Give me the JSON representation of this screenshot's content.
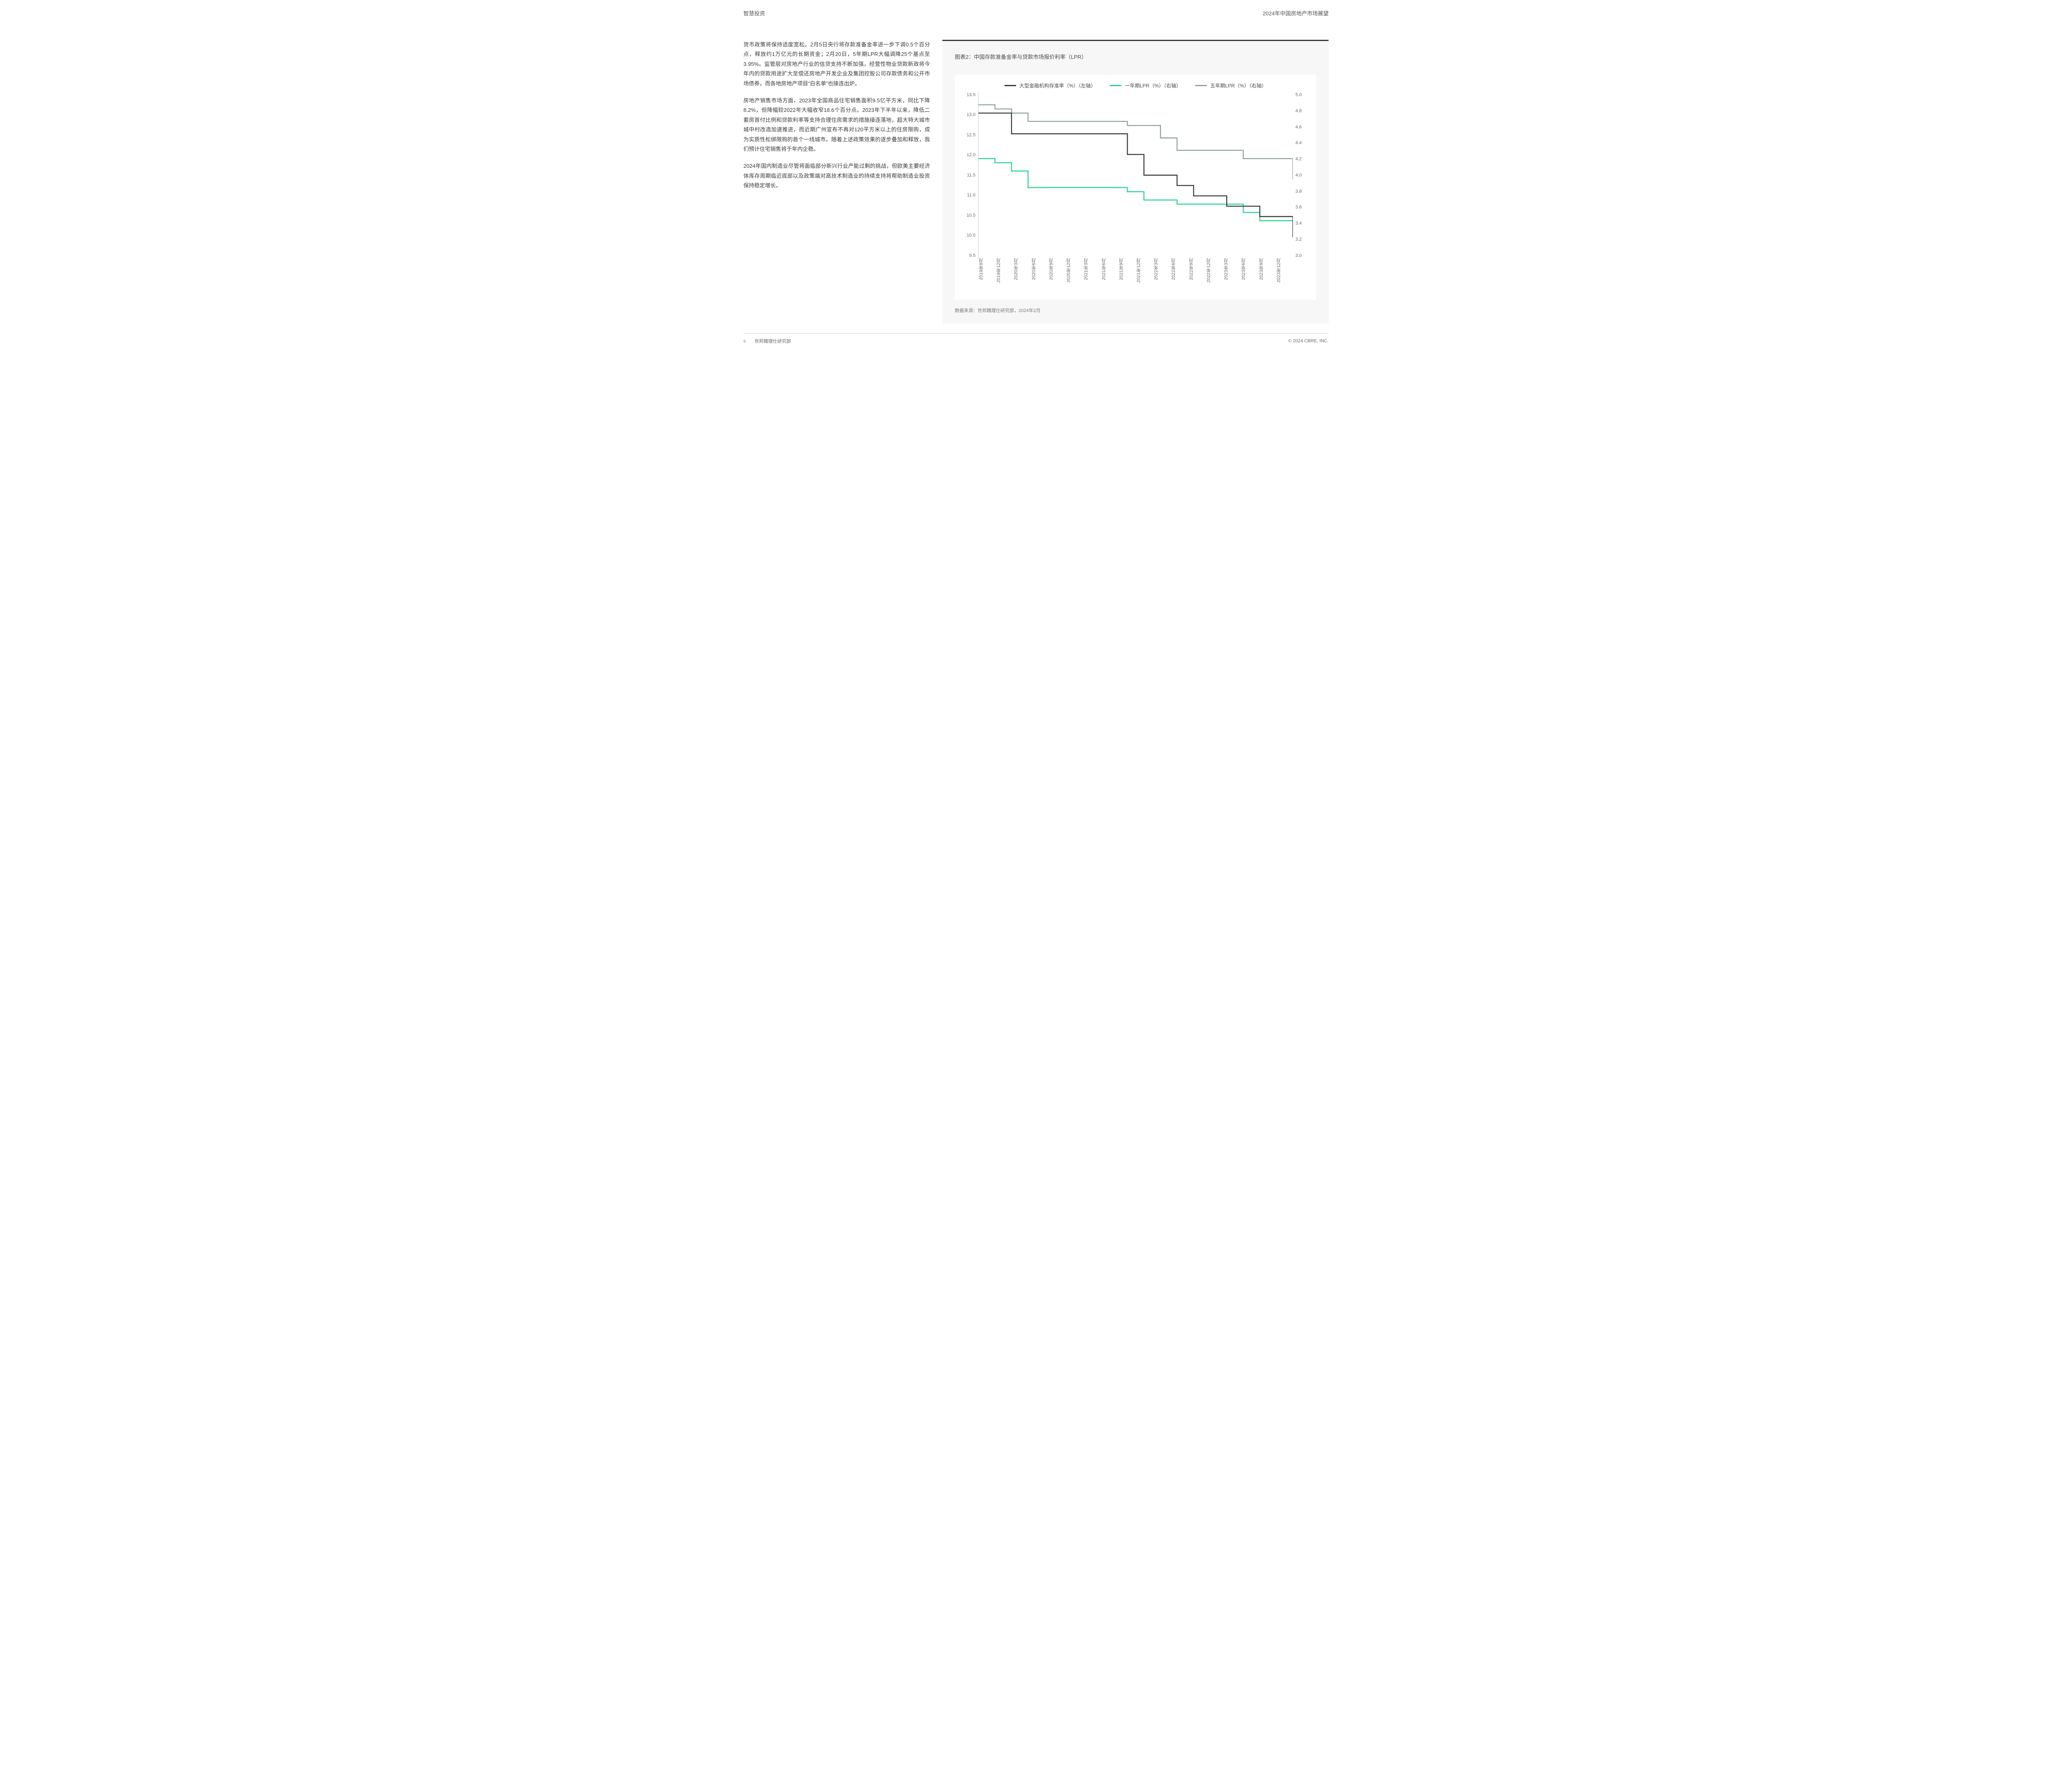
{
  "header": {
    "left": "智慧投资",
    "right": "2024年中国房地产市场展望"
  },
  "paragraphs": [
    "货币政策将保持适度宽松。2月5日央行将存款准备金率进一步下调0.5个百分点，释放约1万亿元的长期资金；2月20日，5年期LPR大幅调降25个基点至3.95%。监管层对房地产行业的信贷支持不断加强，经营性物业贷款新政将今年内的贷款用途扩大至偿还房地产开发企业及集团控股公司存款债务和公开市场债券，而各地房地产项目“白名单”也接连出炉。",
    "房地产销售市场方面，2023年全国商品住宅销售面积9.5亿平方米，同比下降8.2%，但降幅较2022年大幅收窄18.6个百分点。2023年下半年以来，降低二套房首付比例和贷款利率等支持合理住房需求的措施接连落地，超大特大城市城中村改造加速推进，而近期广州宣布不再对120平方米以上的住房限购，成为实质性松绑限购的首个一线城市。随着上述政策效果的逐步叠加和释放，我们预计住宅销售将于年内企稳。",
    "2024年国内制造业尽管将面临部分新兴行业产能过剩的挑战，但欧美主要经济体库存周期临近底部以及政策端对高技术制造业的持续支持将帮助制造业投资保持稳定增长。"
  ],
  "chart": {
    "title": "图表2：中国存款准备金率与贷款市场报价利率（LPR）",
    "type": "line-step-dual-axis",
    "background_color": "#ffffff",
    "panel_color": "#f7f7f7",
    "legend": [
      {
        "label": "大型金融机构存准率（%）（左轴）",
        "color": "#3a3a3a"
      },
      {
        "label": "一年期LPR（%）（右轴）",
        "color": "#1ed68c"
      },
      {
        "label": "五年期LPR（%）（右轴）",
        "color": "#8fa39a"
      }
    ],
    "left_axis": {
      "min": 9.5,
      "max": 13.5,
      "step": 0.5,
      "ticks": [
        13.5,
        13.0,
        12.5,
        12.0,
        11.5,
        11.0,
        10.5,
        10.0,
        9.5
      ]
    },
    "right_axis": {
      "min": 3.0,
      "max": 5.0,
      "step": 0.2,
      "ticks": [
        5.0,
        4.8,
        4.6,
        4.4,
        4.2,
        4.0,
        3.8,
        3.6,
        3.4,
        3.2,
        3.0
      ]
    },
    "x_labels": [
      "2019年9月",
      "2019年12月",
      "2020年3月",
      "2020年6月",
      "2020年9月",
      "2020年12月",
      "2021年3月",
      "2021年6月",
      "2021年9月",
      "2021年12月",
      "2022年3月",
      "2022年6月",
      "2022年9月",
      "2022年12月",
      "2023年3月",
      "2023年6月",
      "2023年9月",
      "2023年12月"
    ],
    "series": {
      "rrr_left": [
        13.0,
        13.0,
        12.5,
        12.5,
        12.5,
        12.5,
        12.5,
        12.5,
        12.5,
        12.0,
        11.5,
        11.5,
        11.25,
        11.0,
        11.0,
        10.75,
        10.75,
        10.5,
        10.5,
        10.0
      ],
      "lpr1_right": [
        4.2,
        4.15,
        4.05,
        3.85,
        3.85,
        3.85,
        3.85,
        3.85,
        3.85,
        3.8,
        3.7,
        3.7,
        3.65,
        3.65,
        3.65,
        3.65,
        3.55,
        3.45,
        3.45,
        3.45
      ],
      "lpr5_right": [
        4.85,
        4.8,
        4.75,
        4.65,
        4.65,
        4.65,
        4.65,
        4.65,
        4.65,
        4.6,
        4.6,
        4.45,
        4.3,
        4.3,
        4.3,
        4.3,
        4.2,
        4.2,
        4.2,
        3.95
      ]
    },
    "line_width": 2.4,
    "label_fontsize": 11
  },
  "source": "数据来源：世邦魏理仕研究部，2024年2月",
  "footer": {
    "page": "5",
    "org": "世邦魏理仕研究部",
    "copyright": "© 2024 CBRE, INC."
  }
}
